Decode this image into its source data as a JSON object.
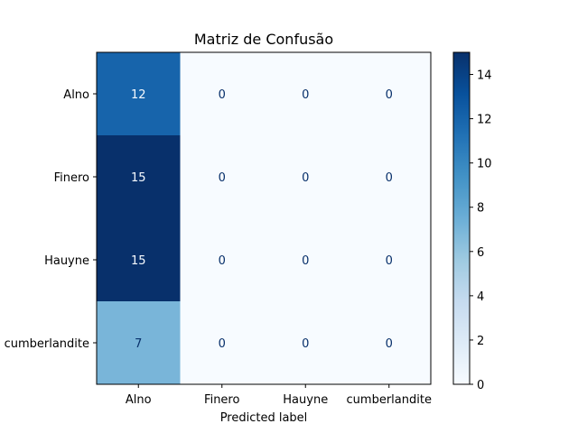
{
  "chart_data": {
    "type": "heatmap",
    "title": "Matriz de Confusão",
    "xlabel": "Predicted label",
    "ylabel": "",
    "x_categories": [
      "Alno",
      "Finero",
      "Hauyne",
      "cumberlandite"
    ],
    "y_categories": [
      "Alno",
      "Finero",
      "Hauyne",
      "cumberlandite"
    ],
    "matrix": [
      [
        12,
        0,
        0,
        0
      ],
      [
        15,
        0,
        0,
        0
      ],
      [
        15,
        0,
        0,
        0
      ],
      [
        7,
        0,
        0,
        0
      ]
    ],
    "colormap": "Blues",
    "vmin": 0,
    "vmax": 15,
    "colorbar_ticks": [
      0,
      2,
      4,
      6,
      8,
      10,
      12,
      14
    ]
  }
}
